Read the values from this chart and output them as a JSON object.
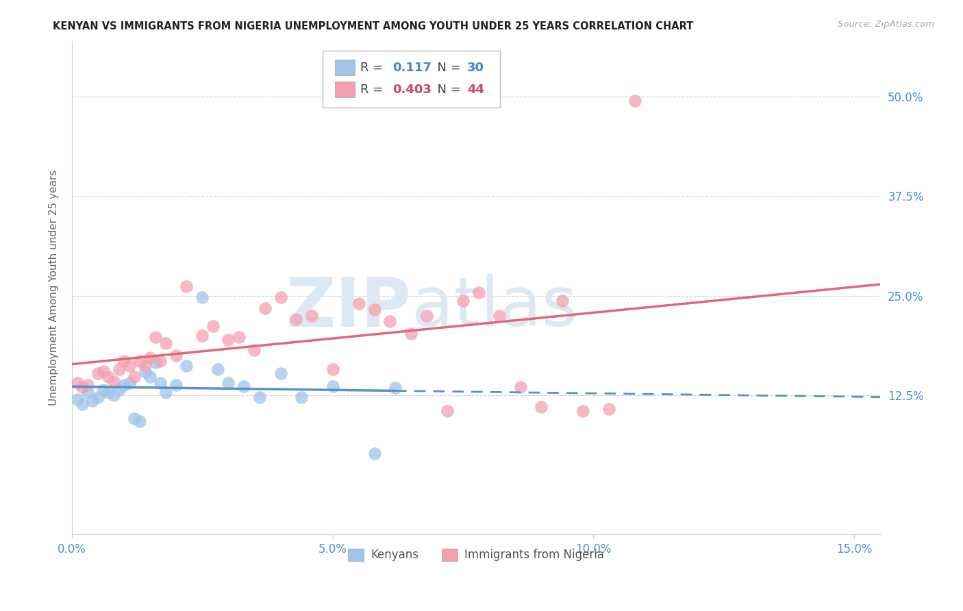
{
  "title": "KENYAN VS IMMIGRANTS FROM NIGERIA UNEMPLOYMENT AMONG YOUTH UNDER 25 YEARS CORRELATION CHART",
  "source": "Source: ZipAtlas.com",
  "ylabel": "Unemployment Among Youth under 25 years",
  "xtick_labels": [
    "0.0%",
    "5.0%",
    "10.0%",
    "15.0%"
  ],
  "xtick_vals": [
    0.0,
    0.05,
    0.1,
    0.15
  ],
  "ytick_labels": [
    "12.5%",
    "25.0%",
    "37.5%",
    "50.0%"
  ],
  "ytick_vals": [
    0.125,
    0.25,
    0.375,
    0.5
  ],
  "xlim": [
    0.0,
    0.155
  ],
  "ylim": [
    -0.05,
    0.57
  ],
  "R1": "0.117",
  "N1": "30",
  "R2": "0.403",
  "N2": "44",
  "legend_label1": "Kenyans",
  "legend_label2": "Immigrants from Nigeria",
  "color_blue_scatter": "#a0c4e8",
  "color_pink_scatter": "#f4a0b0",
  "color_blue_line": "#5590d0",
  "color_pink_line": "#e06878",
  "color_blue_text": "#4488cc",
  "color_pink_text": "#cc4466",
  "color_grid": "#d0d0d0",
  "color_title": "#222222",
  "color_ylabel": "#666666",
  "color_tick_labels": "#4a90d9",
  "color_source": "#aaaaaa",
  "color_watermark": "#dde8f3",
  "watermark_zip": "ZIP",
  "watermark_atlas": "atlas",
  "background": "#ffffff",
  "kenyans_x": [
    0.001,
    0.002,
    0.003,
    0.004,
    0.005,
    0.006,
    0.007,
    0.008,
    0.009,
    0.01,
    0.011,
    0.012,
    0.013,
    0.014,
    0.015,
    0.016,
    0.017,
    0.018,
    0.02,
    0.022,
    0.025,
    0.028,
    0.03,
    0.033,
    0.036,
    0.04,
    0.044,
    0.05,
    0.058,
    0.062
  ],
  "kenyans_y": [
    0.12,
    0.114,
    0.128,
    0.118,
    0.122,
    0.132,
    0.128,
    0.125,
    0.132,
    0.138,
    0.14,
    0.096,
    0.092,
    0.154,
    0.148,
    0.166,
    0.14,
    0.128,
    0.138,
    0.162,
    0.248,
    0.158,
    0.14,
    0.136,
    0.122,
    0.152,
    0.122,
    0.136,
    0.052,
    0.134
  ],
  "nigeria_x": [
    0.001,
    0.002,
    0.003,
    0.005,
    0.006,
    0.007,
    0.008,
    0.009,
    0.01,
    0.011,
    0.012,
    0.013,
    0.014,
    0.015,
    0.016,
    0.017,
    0.018,
    0.02,
    0.022,
    0.025,
    0.027,
    0.03,
    0.032,
    0.035,
    0.037,
    0.04,
    0.043,
    0.046,
    0.05,
    0.055,
    0.058,
    0.061,
    0.065,
    0.068,
    0.072,
    0.075,
    0.078,
    0.082,
    0.086,
    0.09,
    0.094,
    0.098,
    0.103,
    0.108
  ],
  "nigeria_y": [
    0.14,
    0.135,
    0.138,
    0.152,
    0.155,
    0.148,
    0.142,
    0.158,
    0.168,
    0.162,
    0.148,
    0.168,
    0.162,
    0.172,
    0.198,
    0.168,
    0.19,
    0.175,
    0.262,
    0.2,
    0.212,
    0.195,
    0.198,
    0.182,
    0.234,
    0.248,
    0.22,
    0.225,
    0.158,
    0.24,
    0.232,
    0.218,
    0.202,
    0.225,
    0.105,
    0.244,
    0.254,
    0.225,
    0.135,
    0.11,
    0.244,
    0.105,
    0.108,
    0.495
  ]
}
